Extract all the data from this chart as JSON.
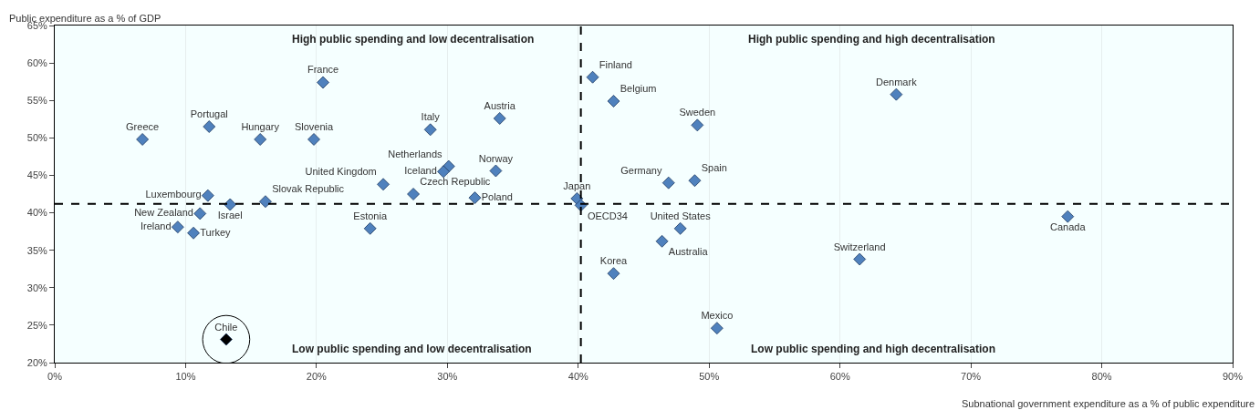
{
  "chart_data": {
    "type": "scatter",
    "xlabel": "Subnational government expenditure as a % of public expenditure",
    "ylabel": "Public expenditure as a % of GDP",
    "xlim": [
      0,
      90
    ],
    "ylim": [
      20,
      65
    ],
    "xticks": [
      {
        "value": 0,
        "label": "0%"
      },
      {
        "value": 10,
        "label": "10%"
      },
      {
        "value": 20,
        "label": "20%"
      },
      {
        "value": 30,
        "label": "30%"
      },
      {
        "value": 40,
        "label": "40%"
      },
      {
        "value": 50,
        "label": "50%"
      },
      {
        "value": 60,
        "label": "60%"
      },
      {
        "value": 70,
        "label": "70%"
      },
      {
        "value": 80,
        "label": "80%"
      },
      {
        "value": 90,
        "label": "90%"
      }
    ],
    "yticks": [
      {
        "value": 20,
        "label": "20%"
      },
      {
        "value": 25,
        "label": "25%"
      },
      {
        "value": 30,
        "label": "30%"
      },
      {
        "value": 35,
        "label": "35%"
      },
      {
        "value": 40,
        "label": "40%"
      },
      {
        "value": 45,
        "label": "45%"
      },
      {
        "value": 50,
        "label": "50%"
      },
      {
        "value": 55,
        "label": "55%"
      },
      {
        "value": 60,
        "label": "60%"
      },
      {
        "value": 65,
        "label": "65%"
      }
    ],
    "marker": "diamond",
    "legend": false,
    "grid": "x",
    "ref_lines": [
      {
        "axis": "x",
        "value": 40.2,
        "line_style": "dashed",
        "color": "#000000"
      },
      {
        "axis": "y",
        "value": 41.2,
        "line_style": "dashed",
        "color": "#000000"
      }
    ],
    "annotations": [
      "High public spending and low decentralisation",
      "High public spending and high decentralisation",
      "Low public spending and low decentralisation",
      "Low public spending and high decentralisation"
    ],
    "series": [
      {
        "name": "Greece",
        "color": "#4f81bd",
        "x": [
          6.7
        ],
        "values": [
          49.8
        ]
      },
      {
        "name": "Portugal",
        "color": "#4f81bd",
        "x": [
          11.8
        ],
        "values": [
          51.5
        ]
      },
      {
        "name": "France",
        "color": "#4f81bd",
        "x": [
          20.5
        ],
        "values": [
          57.4
        ]
      },
      {
        "name": "Hungary",
        "color": "#4f81bd",
        "x": [
          15.7
        ],
        "values": [
          49.8
        ]
      },
      {
        "name": "Slovenia",
        "color": "#4f81bd",
        "x": [
          19.8
        ],
        "values": [
          49.8
        ]
      },
      {
        "name": "Italy",
        "color": "#4f81bd",
        "x": [
          28.7
        ],
        "values": [
          51.1
        ]
      },
      {
        "name": "Austria",
        "color": "#4f81bd",
        "x": [
          34.0
        ],
        "values": [
          52.6
        ]
      },
      {
        "name": "Finland",
        "color": "#4f81bd",
        "x": [
          41.1
        ],
        "values": [
          58.1
        ]
      },
      {
        "name": "Belgium",
        "color": "#4f81bd",
        "x": [
          42.7
        ],
        "values": [
          54.9
        ]
      },
      {
        "name": "Denmark",
        "color": "#4f81bd",
        "x": [
          64.3
        ],
        "values": [
          55.8
        ]
      },
      {
        "name": "Sweden",
        "color": "#4f81bd",
        "x": [
          49.1
        ],
        "values": [
          51.7
        ]
      },
      {
        "name": "Netherlands",
        "color": "#4f81bd",
        "x": [
          30.1
        ],
        "values": [
          46.2
        ]
      },
      {
        "name": "Iceland",
        "color": "#4f81bd",
        "x": [
          29.7
        ],
        "values": [
          45.5
        ]
      },
      {
        "name": "Norway",
        "color": "#4f81bd",
        "x": [
          33.7
        ],
        "values": [
          45.6
        ]
      },
      {
        "name": "United Kingdom",
        "color": "#4f81bd",
        "x": [
          25.1
        ],
        "values": [
          43.8
        ]
      },
      {
        "name": "Czech Republic",
        "color": "#4f81bd",
        "x": [
          27.4
        ],
        "values": [
          42.5
        ]
      },
      {
        "name": "Poland",
        "color": "#4f81bd",
        "x": [
          32.1
        ],
        "values": [
          42.0
        ]
      },
      {
        "name": "Japan",
        "color": "#4f81bd",
        "x": [
          39.9
        ],
        "values": [
          41.9
        ]
      },
      {
        "name": "OECD34",
        "color": "#4f81bd",
        "x": [
          40.2
        ],
        "values": [
          41.0
        ]
      },
      {
        "name": "Germany",
        "color": "#4f81bd",
        "x": [
          46.9
        ],
        "values": [
          44.0
        ]
      },
      {
        "name": "Spain",
        "color": "#4f81bd",
        "x": [
          48.9
        ],
        "values": [
          44.3
        ]
      },
      {
        "name": "Luxembourg",
        "color": "#4f81bd",
        "x": [
          11.7
        ],
        "values": [
          42.3
        ]
      },
      {
        "name": "Slovak Republic",
        "color": "#4f81bd",
        "x": [
          16.1
        ],
        "values": [
          41.5
        ]
      },
      {
        "name": "Israel",
        "color": "#4f81bd",
        "x": [
          13.4
        ],
        "values": [
          41.1
        ]
      },
      {
        "name": "New Zealand",
        "color": "#4f81bd",
        "x": [
          11.1
        ],
        "values": [
          39.9
        ]
      },
      {
        "name": "Ireland",
        "color": "#4f81bd",
        "x": [
          9.4
        ],
        "values": [
          38.1
        ]
      },
      {
        "name": "Turkey",
        "color": "#4f81bd",
        "x": [
          10.6
        ],
        "values": [
          37.3
        ]
      },
      {
        "name": "Estonia",
        "color": "#4f81bd",
        "x": [
          24.1
        ],
        "values": [
          37.9
        ]
      },
      {
        "name": "Chile",
        "color": "#000000",
        "x": [
          13.1
        ],
        "values": [
          23.1
        ]
      },
      {
        "name": "United States",
        "color": "#4f81bd",
        "x": [
          47.8
        ],
        "values": [
          37.9
        ]
      },
      {
        "name": "Australia",
        "color": "#4f81bd",
        "x": [
          46.4
        ],
        "values": [
          36.2
        ]
      },
      {
        "name": "Korea",
        "color": "#4f81bd",
        "x": [
          42.7
        ],
        "values": [
          31.9
        ]
      },
      {
        "name": "Mexico",
        "color": "#4f81bd",
        "x": [
          50.6
        ],
        "values": [
          24.6
        ]
      },
      {
        "name": "Switzerland",
        "color": "#4f81bd",
        "x": [
          61.5
        ],
        "values": [
          33.8
        ]
      },
      {
        "name": "Canada",
        "color": "#4f81bd",
        "x": [
          77.4
        ],
        "values": [
          39.5
        ]
      }
    ]
  }
}
